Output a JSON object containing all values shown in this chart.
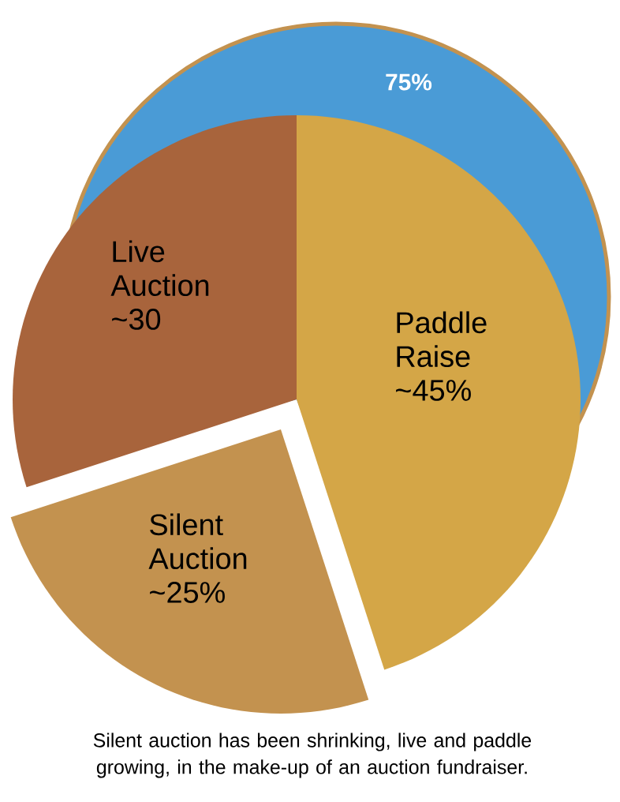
{
  "chart_data": {
    "type": "pie",
    "categories": [
      "Paddle Raise",
      "Silent Auction",
      "Live Auction"
    ],
    "values": [
      45,
      25,
      30
    ],
    "value_labels": [
      "~45%",
      "~25%",
      "~30"
    ],
    "colors": [
      "#d4a647",
      "#c3924f",
      "#a8643c"
    ],
    "annotations": [
      "75%",
      "Silent auction has been shrinking, live and paddle growing, in the make-up of an auction fundraiser."
    ]
  }
}
